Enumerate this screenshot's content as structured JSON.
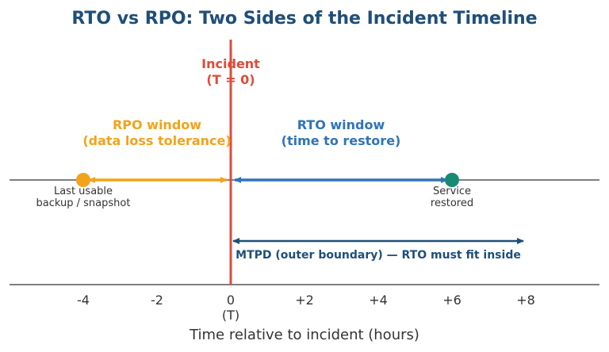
{
  "title": "RTO vs RPO: Two Sides of the Incident Timeline",
  "incident": {
    "line1": "Incident",
    "line2": "(T = 0)"
  },
  "rpo": {
    "line1": "RPO window",
    "line2": "(data loss tolerance)"
  },
  "rto": {
    "line1": "RTO window",
    "line2": "(time to restore)"
  },
  "backup": {
    "line1": "Last usable",
    "line2": "backup / snapshot"
  },
  "service": {
    "line1": "Service",
    "line2": "restored"
  },
  "mtpd": "MTPD (outer boundary) — RTO must fit inside",
  "xaxis": {
    "label": "Time relative to incident (hours)",
    "ticks": [
      "-4",
      "-2",
      "0",
      "+2",
      "+4",
      "+6",
      "+8"
    ],
    "tick_values": [
      -4,
      -2,
      0,
      2,
      4,
      6,
      8
    ],
    "zero_sub": "(T)",
    "range": [
      -6,
      10
    ]
  },
  "points": {
    "backup_hours": -4,
    "incident_hours": 0,
    "restored_hours": 6,
    "mtpd_end_hours": 8
  },
  "colors": {
    "title": "#1f4e79",
    "incident": "#e04b3a",
    "rpo": "#f2a31b",
    "rto": "#2f75b8",
    "restored_dot": "#178a73",
    "mtpd": "#1f4e79",
    "axis": "#333333",
    "text": "#333333"
  }
}
